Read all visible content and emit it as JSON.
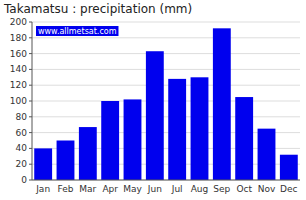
{
  "chart_data": {
    "type": "bar",
    "title": "Takamatsu : precipitation (mm)",
    "categories": [
      "Jan",
      "Feb",
      "Mar",
      "Apr",
      "May",
      "Jun",
      "Jul",
      "Aug",
      "Sep",
      "Oct",
      "Nov",
      "Dec"
    ],
    "values": [
      40,
      50,
      67,
      100,
      102,
      163,
      128,
      130,
      192,
      105,
      65,
      32
    ],
    "color": "#0000EE",
    "ylim": [
      0,
      200
    ],
    "yticks": [
      0,
      20,
      40,
      60,
      80,
      100,
      120,
      140,
      160,
      180,
      200
    ],
    "grid": true,
    "annotations": [
      "www.allmetsat.com"
    ]
  }
}
